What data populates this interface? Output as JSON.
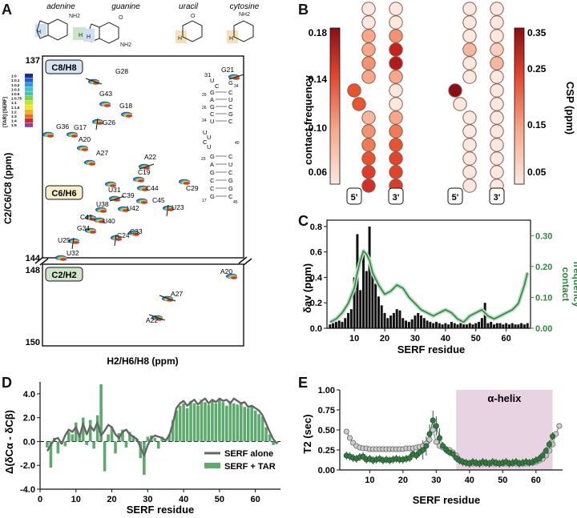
{
  "panels": {
    "A": "A",
    "B": "B",
    "C": "C",
    "D": "D",
    "E": "E"
  },
  "nucleobases": [
    "adenine",
    "guanine",
    "uracil",
    "cytosine"
  ],
  "base_atoms": {
    "nh2": "NH2",
    "n": "N",
    "h": "H",
    "o": "O"
  },
  "panelA": {
    "box_top_label": "C8/H8",
    "box_mid_label": "C6/H6",
    "box_bottom_label": "C2/H2",
    "ylabel": "C2/C6/C8 (ppm)",
    "xlabel": "H2/H6/H8 (ppm)",
    "y_ticks": [
      "137",
      "144",
      "148",
      "150"
    ],
    "ratio_title": "[TAR]:[SERF]",
    "ratios": [
      "1:0",
      "1:0.1",
      "1:0.2",
      "1:0.3",
      "1:0.5",
      "1:0.75",
      "1:1",
      "1:1.5",
      "1:2",
      "1:3",
      "1:4",
      "1:5"
    ],
    "ratio_colors": [
      "#1a2c8f",
      "#1b5fd1",
      "#2f96e0",
      "#3cc7d8",
      "#3ec9a0",
      "#7bd34b",
      "#c8e02e",
      "#f6e41d",
      "#f6b31c",
      "#ec6b1e",
      "#d8262b",
      "#8e3fa0"
    ],
    "peaks": [
      {
        "label": "G28"
      },
      {
        "label": "G21"
      },
      {
        "label": "G43"
      },
      {
        "label": "G18"
      },
      {
        "label": "G26"
      },
      {
        "label": "G36"
      },
      {
        "label": "G17"
      },
      {
        "label": "A20"
      },
      {
        "label": "A27"
      },
      {
        "label": "A22"
      },
      {
        "label": "C19"
      },
      {
        "label": "C29"
      },
      {
        "label": "U31"
      },
      {
        "label": "C44"
      },
      {
        "label": "C39"
      },
      {
        "label": "C45"
      },
      {
        "label": "U38"
      },
      {
        "label": "U42"
      },
      {
        "label": "C41"
      },
      {
        "label": "U40"
      },
      {
        "label": "U23"
      },
      {
        "label": "G34"
      },
      {
        "label": "C33"
      },
      {
        "label": "U25"
      },
      {
        "label": "C24"
      },
      {
        "label": "U32"
      },
      {
        "label": "A20"
      },
      {
        "label": "A27"
      },
      {
        "label": "A22"
      }
    ],
    "tar_nts": {
      "loop_left": [
        "31",
        "U",
        "C"
      ],
      "loop_right": [
        "G",
        "34"
      ],
      "upper_left": [
        "G",
        "A",
        "G",
        "C",
        "U"
      ],
      "upper_right": [
        "C",
        "U",
        "C",
        "G",
        "C"
      ],
      "upper_nums": [
        "29",
        "26",
        "24"
      ],
      "bulge": [
        "U",
        "U",
        "C",
        "U"
      ],
      "lower_left": [
        "G",
        "A",
        "G",
        "C",
        "C",
        "G"
      ],
      "lower_right": [
        "C",
        "U",
        "C",
        "G",
        "G",
        "C"
      ],
      "lower_nums": [
        "23",
        "40",
        "17",
        "45"
      ]
    }
  },
  "panelB": {
    "cbar1_label": "contact frequency",
    "cbar1_ticks": [
      "0.18",
      "0.14",
      "0.10",
      "0.06"
    ],
    "cbar2_label": "CSP (ppm)",
    "cbar2_ticks": [
      "0.35",
      "0.25",
      "0.15",
      "0.05"
    ],
    "end5": "5'",
    "end3": "3'"
  },
  "panelC": {
    "xlabel": "SERF residue",
    "ylabel": "δav (ppm)",
    "ylabel2": "contact frequency",
    "ylabel2_line1": "contact",
    "ylabel2_line2": "frequency",
    "left_color": "#111111",
    "right_color": "#2a8a3a"
  },
  "panelD": {
    "xlabel": "SERF residue",
    "ylabel": "Δ(δCα - δCβ)",
    "legend": [
      "SERF alone",
      "SERF + TAR"
    ],
    "line_color": "#666666",
    "bar_color": "#5cab6c"
  },
  "panelE": {
    "xlabel": "SERF residue",
    "ylabel": "T2 (sec)",
    "helix_label": "α-helix",
    "helix_color": "#e8d3e2",
    "open_color": "#cccccc",
    "filled_color": "#2f7d3e"
  },
  "chart_data": [
    {
      "type": "bar",
      "title": "C",
      "xlabel": "SERF residue",
      "ylabel": "δav (ppm)",
      "ylabel2": "contact frequency",
      "xlim": [
        1,
        68
      ],
      "ylim": [
        0,
        0.85
      ],
      "ylim2": [
        0,
        0.35
      ],
      "x_ticks": [
        10,
        20,
        30,
        40,
        50,
        60
      ],
      "y_ticks": [
        0.0,
        0.2,
        0.4,
        0.6,
        0.8
      ],
      "y2_ticks": [
        0.0,
        0.1,
        0.2,
        0.3
      ],
      "series": [
        {
          "name": "δav",
          "x": [
            2,
            3,
            4,
            5,
            6,
            7,
            8,
            9,
            10,
            11,
            12,
            13,
            14,
            15,
            16,
            17,
            18,
            19,
            20,
            21,
            22,
            23,
            24,
            25,
            26,
            27,
            28,
            29,
            30,
            31,
            32,
            33,
            34,
            35,
            36,
            37,
            38,
            39,
            40,
            41,
            42,
            43,
            44,
            45,
            46,
            47,
            48,
            49,
            50,
            51,
            52,
            53,
            54,
            55,
            56,
            57,
            58,
            59,
            60,
            61,
            62,
            63,
            64,
            65,
            66,
            67
          ],
          "values": [
            0.03,
            0.04,
            0.05,
            0.06,
            0.05,
            0.08,
            0.12,
            0.15,
            0.4,
            0.74,
            0.3,
            0.62,
            0.45,
            0.8,
            0.45,
            0.35,
            0.25,
            0.18,
            0.12,
            0.08,
            0.1,
            0.12,
            0.15,
            0.14,
            0.08,
            0.06,
            0.05,
            0.07,
            0.1,
            0.12,
            0.1,
            0.08,
            0.06,
            0.05,
            0.04,
            0.05,
            0.04,
            0.03,
            0.04,
            0.03,
            0.05,
            0.04,
            0.03,
            0.04,
            0.03,
            0.03,
            0.04,
            0.03,
            0.04,
            0.05,
            0.08,
            0.2,
            0.04,
            0.05,
            0.03,
            0.04,
            0.04,
            0.03,
            0.04,
            0.03,
            0.04,
            0.03,
            0.03,
            0.04,
            0.03,
            0.04
          ]
        },
        {
          "name": "contact frequency",
          "x": [
            2,
            4,
            6,
            8,
            10,
            11,
            12,
            13,
            14,
            15,
            16,
            18,
            20,
            22,
            24,
            26,
            28,
            30,
            32,
            34,
            36,
            38,
            40,
            42,
            44,
            46,
            48,
            50,
            52,
            54,
            56,
            58,
            60,
            62,
            64,
            66,
            67
          ],
          "values": [
            0.02,
            0.03,
            0.05,
            0.08,
            0.13,
            0.18,
            0.22,
            0.25,
            0.24,
            0.22,
            0.18,
            0.14,
            0.11,
            0.12,
            0.14,
            0.13,
            0.1,
            0.08,
            0.06,
            0.05,
            0.04,
            0.05,
            0.06,
            0.05,
            0.03,
            0.02,
            0.04,
            0.05,
            0.06,
            0.04,
            0.03,
            0.04,
            0.05,
            0.06,
            0.08,
            0.14,
            0.18
          ]
        }
      ]
    },
    {
      "type": "bar",
      "title": "D",
      "xlabel": "SERF residue",
      "ylabel": "Δ(δCα - δCβ)",
      "xlim": [
        0,
        67
      ],
      "ylim": [
        -4,
        5
      ],
      "x_ticks": [
        0,
        10,
        20,
        30,
        40,
        50,
        60
      ],
      "y_ticks": [
        -4.0,
        -2.0,
        0.0,
        2.0,
        4.0
      ],
      "series": [
        {
          "name": "SERF alone",
          "x": [
            2,
            3,
            4,
            5,
            6,
            7,
            8,
            9,
            10,
            11,
            12,
            13,
            14,
            15,
            16,
            17,
            18,
            19,
            20,
            21,
            22,
            23,
            24,
            25,
            26,
            27,
            28,
            29,
            30,
            31,
            32,
            33,
            34,
            35,
            36,
            37,
            38,
            39,
            40,
            41,
            42,
            43,
            44,
            45,
            46,
            47,
            48,
            49,
            50,
            51,
            52,
            53,
            54,
            55,
            56,
            57,
            58,
            59,
            60,
            61,
            62,
            63,
            64,
            65,
            66
          ],
          "values": [
            -0.8,
            -0.3,
            0.2,
            0.3,
            -0.2,
            0.5,
            1.0,
            0.8,
            1.2,
            0.4,
            1.5,
            0.6,
            1.3,
            0.9,
            1.6,
            0.5,
            0.9,
            1.4,
            1.2,
            0.6,
            0.3,
            0.8,
            1.0,
            0.6,
            0.4,
            0.2,
            -0.5,
            -1.2,
            -0.3,
            0.3,
            0.5,
            0.4,
            0.3,
            0.1,
            0.5,
            1.5,
            2.8,
            3.2,
            3.4,
            3.0,
            3.3,
            3.5,
            3.1,
            3.4,
            3.6,
            3.2,
            3.5,
            3.3,
            3.6,
            3.4,
            3.5,
            3.2,
            3.6,
            3.4,
            3.2,
            3.3,
            2.9,
            3.0,
            2.8,
            2.6,
            2.2,
            1.5,
            0.8,
            0.2,
            -0.2
          ]
        },
        {
          "name": "SERF + TAR",
          "x": [
            2,
            3,
            4,
            5,
            6,
            7,
            8,
            9,
            10,
            11,
            12,
            13,
            14,
            15,
            16,
            17,
            18,
            19,
            20,
            21,
            22,
            23,
            24,
            25,
            26,
            27,
            28,
            29,
            30,
            31,
            32,
            33,
            34,
            35,
            36,
            37,
            38,
            39,
            40,
            41,
            42,
            43,
            44,
            45,
            46,
            47,
            48,
            49,
            50,
            51,
            52,
            53,
            54,
            55,
            56,
            57,
            58,
            59,
            60,
            61,
            62,
            63,
            64,
            65,
            66
          ],
          "values": [
            -0.5,
            -2.2,
            0.3,
            -1.0,
            -0.2,
            -0.4,
            0.8,
            0.6,
            1.6,
            0.5,
            2.0,
            -0.3,
            1.8,
            -0.6,
            2.2,
            4.8,
            -2.5,
            0.6,
            1.2,
            -1.0,
            0.7,
            1.0,
            -0.5,
            0.8,
            0.5,
            0.2,
            -1.4,
            -2.8,
            0.4,
            0.5,
            0.3,
            -0.6,
            0.4,
            0.2,
            0.6,
            1.8,
            2.6,
            3.0,
            3.2,
            2.8,
            3.4,
            3.2,
            3.0,
            3.5,
            3.3,
            3.1,
            3.4,
            3.2,
            3.5,
            3.3,
            3.0,
            3.4,
            3.2,
            3.1,
            3.3,
            2.9,
            2.8,
            3.0,
            2.6,
            2.3,
            2.1,
            1.2,
            0.6,
            -0.3,
            -0.2
          ]
        }
      ]
    },
    {
      "type": "scatter",
      "title": "E",
      "xlabel": "SERF residue",
      "ylabel": "T2 (sec)",
      "xlim": [
        1,
        68
      ],
      "ylim": [
        0,
        1.0
      ],
      "x_ticks": [
        10,
        20,
        30,
        40,
        50,
        60
      ],
      "y_ticks": [
        0.0,
        0.25,
        0.5,
        0.75,
        1.0
      ],
      "helix_range": [
        36,
        65
      ],
      "series": [
        {
          "name": "SERF alone",
          "x": [
            3,
            4,
            5,
            6,
            7,
            8,
            9,
            10,
            11,
            12,
            13,
            14,
            15,
            16,
            17,
            18,
            19,
            20,
            21,
            22,
            23,
            24,
            25,
            26,
            27,
            28,
            29,
            30,
            31,
            32,
            33,
            34,
            35,
            36,
            37,
            38,
            39,
            40,
            41,
            42,
            43,
            44,
            45,
            46,
            47,
            48,
            49,
            50,
            51,
            52,
            53,
            54,
            55,
            56,
            57,
            58,
            59,
            60,
            61,
            62,
            63,
            64,
            65,
            66,
            67
          ],
          "values": [
            0.48,
            0.4,
            0.34,
            0.3,
            0.28,
            0.27,
            0.27,
            0.26,
            0.26,
            0.26,
            0.26,
            0.26,
            0.26,
            0.26,
            0.26,
            0.26,
            0.26,
            0.26,
            0.27,
            0.27,
            0.27,
            0.28,
            0.29,
            0.3,
            0.33,
            0.38,
            0.5,
            0.35,
            0.3,
            0.28,
            0.26,
            0.25,
            0.22,
            0.18,
            0.12,
            0.1,
            0.09,
            0.08,
            0.08,
            0.08,
            0.08,
            0.08,
            0.08,
            0.08,
            0.08,
            0.08,
            0.08,
            0.08,
            0.08,
            0.08,
            0.08,
            0.08,
            0.08,
            0.08,
            0.08,
            0.09,
            0.09,
            0.1,
            0.12,
            0.14,
            0.18,
            0.24,
            0.32,
            0.45,
            0.55
          ]
        },
        {
          "name": "SERF + TAR",
          "x": [
            3,
            4,
            5,
            6,
            7,
            8,
            9,
            10,
            11,
            12,
            13,
            14,
            15,
            16,
            17,
            18,
            19,
            20,
            21,
            22,
            23,
            24,
            25,
            26,
            27,
            28,
            29,
            30,
            31,
            32,
            33,
            34,
            35,
            36,
            37,
            38,
            39,
            40,
            41,
            42,
            43,
            44,
            45,
            46,
            47,
            48,
            49,
            50,
            51,
            52,
            53,
            54,
            55,
            56,
            57,
            58,
            59,
            60,
            61,
            62,
            63,
            64,
            65
          ],
          "values": [
            0.18,
            0.17,
            0.15,
            0.14,
            0.16,
            0.17,
            0.13,
            0.14,
            0.12,
            0.13,
            0.14,
            0.12,
            0.13,
            0.12,
            0.13,
            0.14,
            0.13,
            0.13,
            0.14,
            0.15,
            0.2,
            0.18,
            0.22,
            0.25,
            0.3,
            0.45,
            0.62,
            0.55,
            0.4,
            0.3,
            0.25,
            0.22,
            0.2,
            0.15,
            0.12,
            0.1,
            0.09,
            0.08,
            0.1,
            0.09,
            0.08,
            0.1,
            0.09,
            0.08,
            0.1,
            0.09,
            0.08,
            0.09,
            0.1,
            0.08,
            0.09,
            0.1,
            0.08,
            0.09,
            0.1,
            0.09,
            0.1,
            0.12,
            0.14,
            0.18,
            0.24,
            0.32,
            0.42
          ]
        }
      ]
    }
  ]
}
